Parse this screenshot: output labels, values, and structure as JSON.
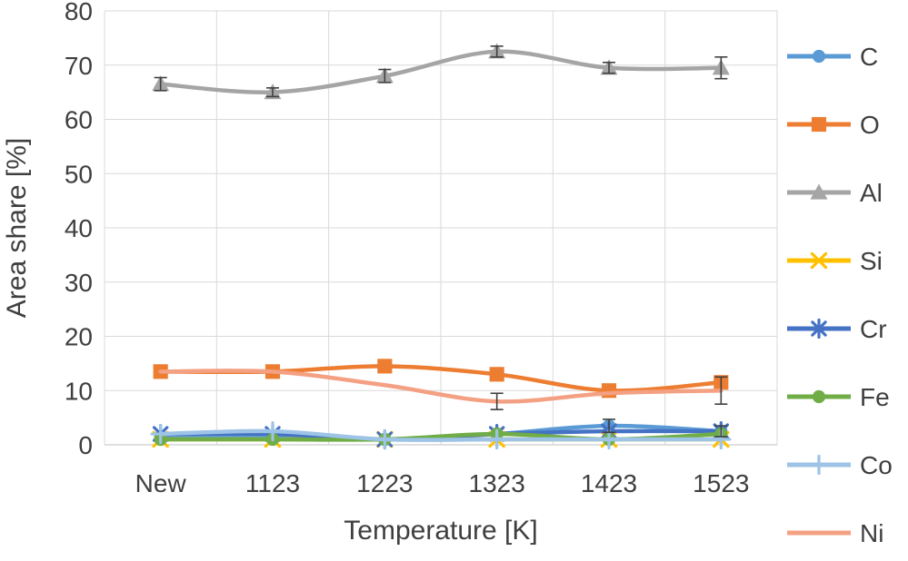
{
  "chart_data": {
    "type": "line",
    "title": "",
    "xlabel": "Temperature [K]",
    "ylabel": "Area share [%]",
    "categories": [
      "New",
      "1123",
      "1223",
      "1323",
      "1423",
      "1523"
    ],
    "ylim": [
      0,
      80
    ],
    "ytick_step": 10,
    "grid": true,
    "legend_position": "right",
    "axis_text_color": "#3f3f3f",
    "gridline_color": "#d9d9d9",
    "axis_line_color": "#bfbfbf",
    "error_bar_color": "#404040",
    "series": [
      {
        "name": "C",
        "color": "#5B9BD5",
        "marker": "circle",
        "values": [
          1.5,
          1.5,
          1,
          2,
          3.5,
          2.5
        ],
        "error": [
          0,
          0,
          0,
          0,
          1.2,
          1
        ]
      },
      {
        "name": "O",
        "color": "#ED7D31",
        "marker": "square",
        "values": [
          13.5,
          13.5,
          14.5,
          13,
          10,
          11.5
        ],
        "error": [
          0,
          0,
          0,
          0,
          0,
          0
        ]
      },
      {
        "name": "Al",
        "color": "#A5A5A5",
        "marker": "triangle",
        "values": [
          66.5,
          65,
          68,
          72.5,
          69.5,
          69.5
        ],
        "error": [
          1.2,
          0.8,
          1.2,
          1,
          1,
          2
        ]
      },
      {
        "name": "Si",
        "color": "#FFC000",
        "marker": "x",
        "values": [
          1,
          1,
          1,
          1,
          1,
          1
        ],
        "error": [
          0,
          0,
          0,
          0,
          0,
          0
        ]
      },
      {
        "name": "Cr",
        "color": "#4472C4",
        "marker": "star",
        "values": [
          2,
          2,
          1,
          2,
          2.5,
          2.5
        ],
        "error": [
          0,
          0,
          0,
          0,
          0,
          0
        ]
      },
      {
        "name": "Fe",
        "color": "#70AD47",
        "marker": "circle",
        "values": [
          1,
          1,
          1,
          2,
          1,
          2
        ],
        "error": [
          0,
          0,
          0,
          0,
          0,
          0
        ]
      },
      {
        "name": "Co",
        "color": "#9DC3E6",
        "marker": "plus",
        "values": [
          2,
          2.5,
          1,
          1,
          1,
          1
        ],
        "error": [
          0,
          0,
          0,
          0,
          0,
          0
        ]
      },
      {
        "name": "Ni",
        "color": "#F4A083",
        "marker": "none",
        "values": [
          13.5,
          13.5,
          11,
          8,
          9.5,
          10
        ],
        "error": [
          0,
          0,
          0,
          1.5,
          0,
          2.5
        ]
      }
    ]
  }
}
